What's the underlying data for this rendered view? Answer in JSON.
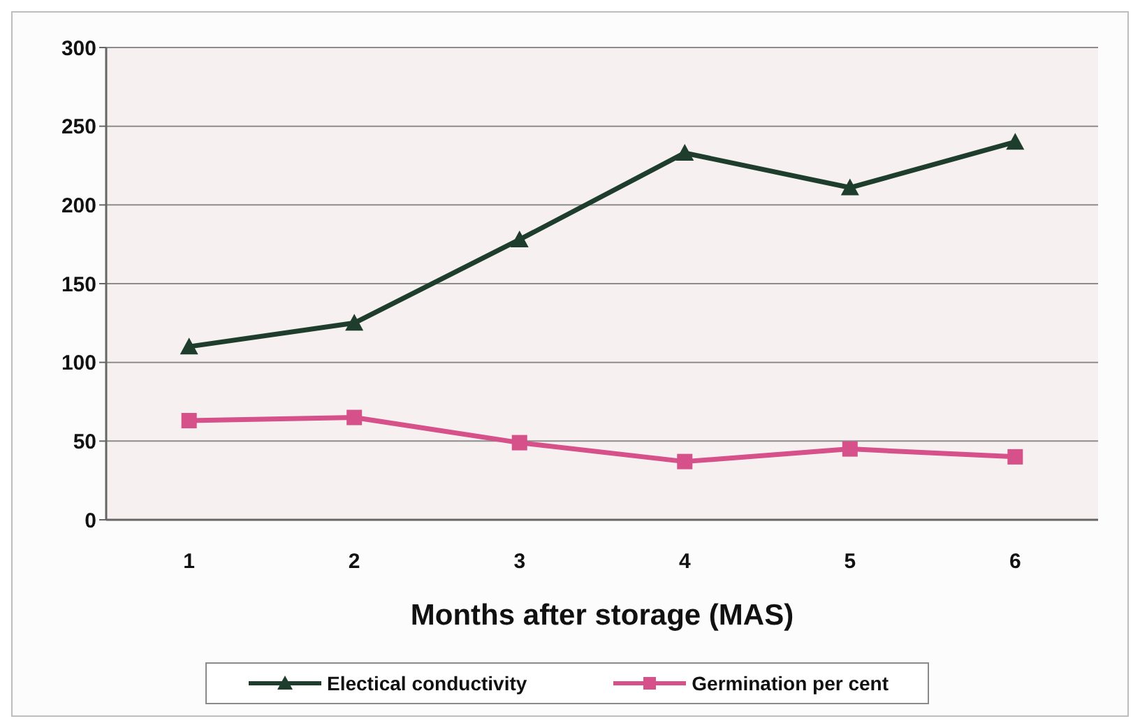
{
  "chart_data": {
    "type": "line",
    "xlabel": "Months after storage (MAS)",
    "categories": [
      "1",
      "2",
      "3",
      "4",
      "5",
      "6"
    ],
    "series": [
      {
        "name": "Electical conductivity",
        "color": "#1f3d2c",
        "marker": "triangle",
        "values": [
          110,
          125,
          178,
          233,
          211,
          240
        ]
      },
      {
        "name": "Germination per cent",
        "color": "#d6508a",
        "marker": "square",
        "values": [
          63,
          65,
          49,
          37,
          45,
          40
        ]
      }
    ],
    "ylim": [
      0,
      300
    ],
    "yticks": [
      0,
      50,
      100,
      150,
      200,
      250,
      300
    ],
    "grid": "y",
    "legend": "bottom",
    "line_style": "solid"
  }
}
